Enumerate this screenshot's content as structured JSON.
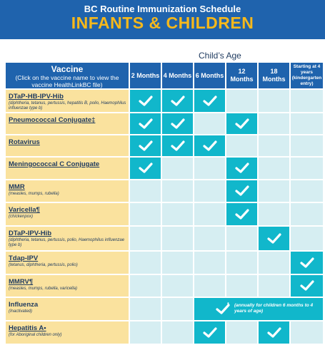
{
  "header": {
    "subtitle": "BC Routine Immunization Schedule",
    "title": "INFANTS & CHILDREN"
  },
  "ages_label": "Child’s Age",
  "table_header": {
    "vaccine_title": "Vaccine",
    "vaccine_note": "(Click on the vaccine name to view the vaccine HealthLinkBC file)",
    "columns": [
      "2 Months",
      "4 Months",
      "6 Months",
      "12 Months",
      "18 Months",
      "Starting at 4 years (kindergarten entry)"
    ]
  },
  "rows": [
    {
      "name": "DTaP-HB-IPV-Hib",
      "desc": "(diphtheria, tetanus, pertussis, hepatitis B, polio, Haemophilus influenzae type b)",
      "doses": [
        1,
        1,
        1,
        0,
        0,
        0
      ]
    },
    {
      "name": "Pneumococcal Conjugate‡",
      "desc": "",
      "doses": [
        1,
        1,
        0,
        1,
        0,
        0
      ]
    },
    {
      "name": "Rotavirus",
      "desc": "",
      "doses": [
        1,
        1,
        1,
        0,
        0,
        0
      ]
    },
    {
      "name": "Meningococcal C Conjugate",
      "desc": "",
      "doses": [
        1,
        0,
        0,
        1,
        0,
        0
      ]
    },
    {
      "name": "MMR",
      "desc": "(measles, mumps, rubella)",
      "doses": [
        0,
        0,
        0,
        1,
        0,
        0
      ]
    },
    {
      "name": "Varicella¶",
      "desc": "(chickenpox)",
      "doses": [
        0,
        0,
        0,
        1,
        0,
        0
      ]
    },
    {
      "name": "DTaP-IPV-Hib",
      "desc": "(diphtheria, tetanus, pertussis, polio, Haemophilus influenzae type b)",
      "doses": [
        0,
        0,
        0,
        0,
        1,
        0
      ]
    },
    {
      "name": "Tdap-IPV",
      "desc": "(tetanus, diphtheria, pertussis, polio)",
      "doses": [
        0,
        0,
        0,
        0,
        0,
        1
      ]
    },
    {
      "name": "MMRV¶",
      "desc": "(measles, mumps, rubella, varicella)",
      "doses": [
        0,
        0,
        0,
        0,
        0,
        1
      ]
    },
    {
      "name": "Influenza",
      "desc": "(Inactivated)",
      "doses": [
        0,
        0,
        0,
        0,
        0,
        0
      ],
      "span_note": "(annually for children 6 months to 4 years of age)",
      "span_mark": "*"
    },
    {
      "name": "Hepatitis A•",
      "desc": "(for Aboriginal children only)",
      "doses": [
        0,
        0,
        1,
        0,
        1,
        0
      ]
    }
  ],
  "colors": {
    "banner": "#1f63ad",
    "title": "#f6b81b",
    "dose": "#11b7cb",
    "empty": "#d6eef2",
    "name_bg": "#fae29e"
  }
}
